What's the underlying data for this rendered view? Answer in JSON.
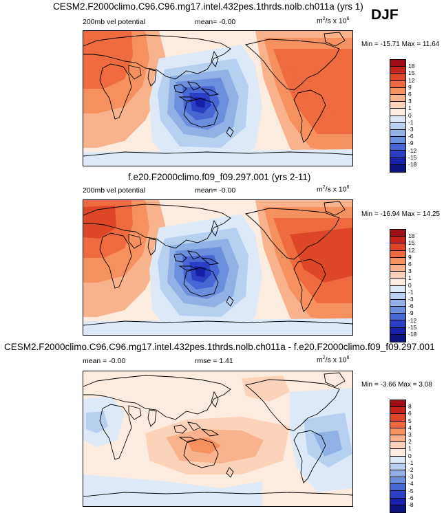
{
  "season": "DJF",
  "chart_data": [
    {
      "type": "heatmap",
      "title": "CESM2.F2000climo.C96.C96.mg17.intel.432pes.1thrds.nolb.ch011a (yrs 1)",
      "left_label": "200mb vel potential",
      "center_label": "mean=  -0.00",
      "units": "m²/s x 10⁶",
      "units_base": "m",
      "units_exp": "2",
      "units_tail": "/s x 10",
      "units_exp2": "6",
      "min_max": "Min = -15.71 Max =  11.64",
      "min": -15.71,
      "max": 11.64,
      "levels": [
        "18",
        "15",
        "12",
        "9",
        "6",
        "3",
        "1",
        "0",
        "-1",
        "-3",
        "-6",
        "-9",
        "-12",
        "-15",
        "-18"
      ],
      "colors": [
        "#9e0e12",
        "#c5241a",
        "#de4628",
        "#ef6a3f",
        "#f5905f",
        "#f9b38c",
        "#fcd3b8",
        "#fcece0",
        "#dde9f6",
        "#b8d0ef",
        "#8fb1e6",
        "#6a8fdc",
        "#4767d3",
        "#2a40c4",
        "#1620a9",
        "#0d137f"
      ]
    },
    {
      "type": "heatmap",
      "title": "f.e20.F2000climo.f09_f09.297.001 (yrs 2-11)",
      "left_label": "200mb vel potential",
      "center_label": "mean=  -0.00",
      "units": "m²/s x 10⁶",
      "units_base": "m",
      "units_exp": "2",
      "units_tail": "/s x 10",
      "units_exp2": "6",
      "min_max": "Min = -16.94 Max =  14.25",
      "min": -16.94,
      "max": 14.25,
      "levels": [
        "18",
        "15",
        "12",
        "9",
        "6",
        "3",
        "1",
        "0",
        "-1",
        "-3",
        "-6",
        "-9",
        "-12",
        "-15",
        "-18"
      ],
      "colors": [
        "#9e0e12",
        "#c5241a",
        "#de4628",
        "#ef6a3f",
        "#f5905f",
        "#f9b38c",
        "#fcd3b8",
        "#fcece0",
        "#dde9f6",
        "#b8d0ef",
        "#8fb1e6",
        "#6a8fdc",
        "#4767d3",
        "#2a40c4",
        "#1620a9",
        "#0d137f"
      ]
    },
    {
      "type": "heatmap",
      "title": "CESM2.F2000climo.C96.C96.mg17.intel.432pes.1thrds.nolb.ch011a - f.e20.F2000climo.f09_f09.297.001",
      "left_label": "mean =  -0.00",
      "center_label": "rmse =   1.41",
      "units": "m²/s x 10⁶",
      "units_base": "m",
      "units_exp": "2",
      "units_tail": "/s x 10",
      "units_exp2": "6",
      "min_max": "Min = -3.66 Max =  3.08",
      "min": -3.66,
      "max": 3.08,
      "levels": [
        "8",
        "6",
        "5",
        "4",
        "3",
        "2",
        "1",
        "0",
        "-1",
        "-2",
        "-3",
        "-4",
        "-5",
        "-6",
        "-8"
      ],
      "colors": [
        "#9e0e12",
        "#c5241a",
        "#de4628",
        "#ef6a3f",
        "#f5905f",
        "#f9b38c",
        "#fcd3b8",
        "#fcece0",
        "#dde9f6",
        "#b8d0ef",
        "#8fb1e6",
        "#6a8fdc",
        "#4767d3",
        "#2a40c4",
        "#1620a9",
        "#0d137f"
      ]
    }
  ]
}
